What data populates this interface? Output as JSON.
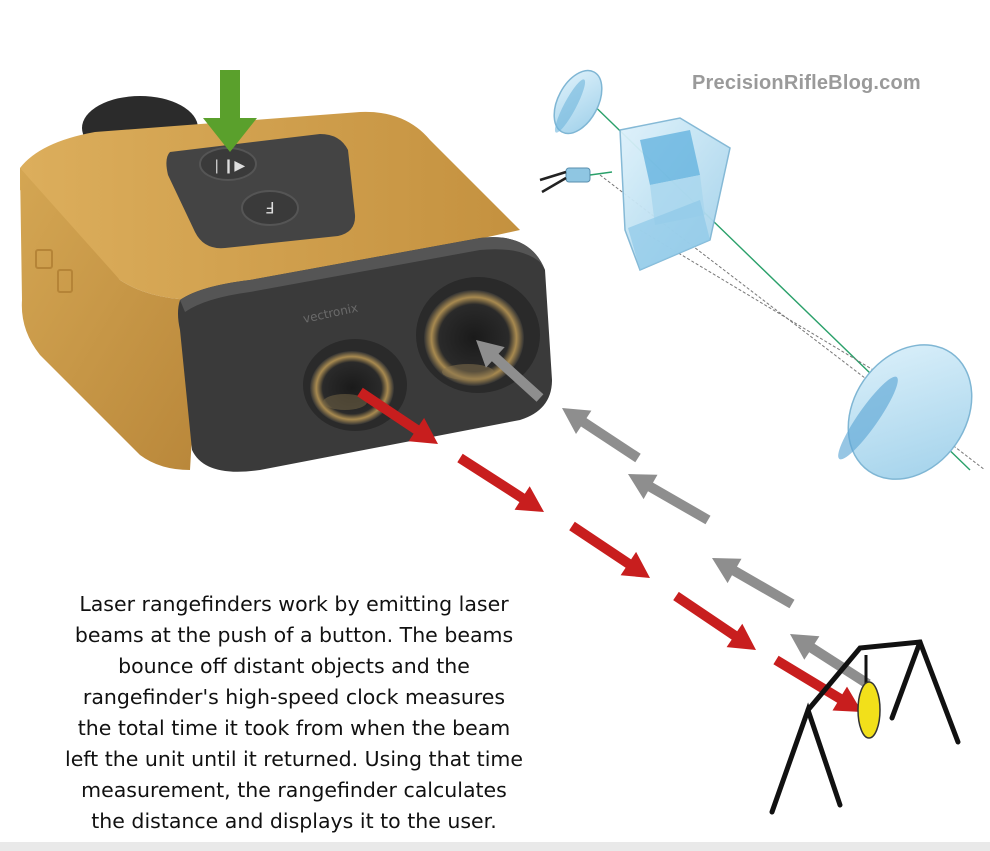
{
  "watermark": "PrecisionRifleBlog.com",
  "device": {
    "button_fire_symbol": "❘❙▶",
    "button_f_label": "F",
    "brand": "vectronix"
  },
  "caption": {
    "lines": [
      "Laser rangefinders work by emitting laser",
      "beams at the push of a button. The beams",
      "bounce off distant objects and the",
      "rangefinder's high-speed clock measures",
      "the total time it took from when the beam",
      "left the unit until it returned. Using that time",
      "measurement, the rangefinder calculates",
      "the distance and displays it to the user."
    ]
  },
  "colors": {
    "device_body": "#c99a45",
    "device_face": "#3a3a3a",
    "push_arrow": "#5aa02c",
    "outgoing_beam": "#c81e1e",
    "return_beam": "#8e8e8e",
    "optics_glass": "#bfe3f5",
    "target": "#f2e01a"
  },
  "icons": [
    "push-arrow-icon",
    "outgoing-beam-arrow-icon",
    "return-beam-arrow-icon",
    "target-icon"
  ]
}
